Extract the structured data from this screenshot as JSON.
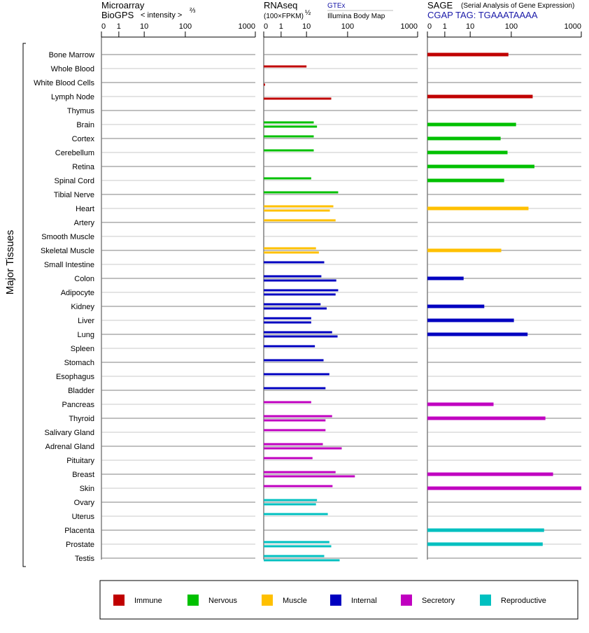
{
  "chart_data": {
    "type": "bar",
    "orientation": "horizontal",
    "ylabel": "Major Tissues",
    "axis_ticks": [
      0,
      1,
      10,
      100,
      1000
    ],
    "xlim": [
      0,
      1000
    ],
    "grid": true,
    "legend_placement": "bottom",
    "panels": {
      "microarray": {
        "title": "Microarray",
        "subtitle": "BioGPS",
        "unit_label": "< intensity >",
        "unit_exponent": "⅔",
        "series": []
      },
      "rnaseq": {
        "title": "RNAseq",
        "unit_label": "(100×FPKM)",
        "unit_exponent": "½",
        "series": [
          {
            "name": "GTEx",
            "values": [
              null,
              10,
              null,
              null,
              null,
              15,
              15,
              15,
              null,
              13,
              59,
              45,
              51,
              null,
              17,
              27,
              23,
              59,
              22,
              13,
              42,
              16,
              26,
              36,
              29,
              13,
              42,
              29,
              25,
              14,
              51,
              43,
              18,
              33,
              null,
              36,
              27
            ]
          },
          {
            "name": "Illumina Body Map",
            "values": [
              null,
              null,
              0.08,
              40,
              null,
              18,
              null,
              null,
              null,
              null,
              null,
              37,
              null,
              null,
              20,
              null,
              53,
              51,
              31,
              13,
              57,
              null,
              null,
              null,
              null,
              null,
              29,
              null,
              72,
              null,
              127,
              null,
              17,
              null,
              null,
              40,
              64
            ]
          }
        ]
      },
      "sage": {
        "title": "SAGE",
        "subtitle": "(Serial Analysis of Gene Expression)",
        "tag_label": "CGAP TAG: TGAAATAAAA",
        "series": [
          {
            "name": "SAGE",
            "values": [
              85,
              null,
              null,
              202,
              null,
              117,
              55,
              81,
              214,
              67,
              null,
              176,
              null,
              null,
              57,
              null,
              5.5,
              null,
              22,
              109,
              171,
              null,
              null,
              null,
              null,
              37,
              307,
              null,
              null,
              null,
              395,
              1000,
              null,
              null,
              294,
              281,
              null
            ]
          }
        ]
      }
    },
    "categories": [
      "Bone Marrow",
      "Whole Blood",
      "White Blood Cells",
      "Lymph Node",
      "Thymus",
      "Brain",
      "Cortex",
      "Cerebellum",
      "Retina",
      "Spinal Cord",
      "Tibial Nerve",
      "Heart",
      "Artery",
      "Smooth Muscle",
      "Skeletal Muscle",
      "Small Intestine",
      "Colon",
      "Adipocyte",
      "Kidney",
      "Liver",
      "Lung",
      "Spleen",
      "Stomach",
      "Esophagus",
      "Bladder",
      "Pancreas",
      "Thyroid",
      "Salivary Gland",
      "Adrenal Gland",
      "Pituitary",
      "Breast",
      "Skin",
      "Ovary",
      "Uterus",
      "Placenta",
      "Prostate",
      "Testis"
    ],
    "category_groups": [
      0,
      0,
      0,
      0,
      0,
      1,
      1,
      1,
      1,
      1,
      1,
      2,
      2,
      2,
      2,
      3,
      3,
      3,
      3,
      3,
      3,
      3,
      3,
      3,
      3,
      4,
      4,
      4,
      4,
      4,
      4,
      4,
      5,
      5,
      5,
      5,
      5
    ],
    "legend": [
      {
        "label": "Immune",
        "color": "#c00000"
      },
      {
        "label": "Nervous",
        "color": "#00c000"
      },
      {
        "label": "Muscle",
        "color": "#ffc000"
      },
      {
        "label": "Internal",
        "color": "#0000c0"
      },
      {
        "label": "Secretory",
        "color": "#c000c0"
      },
      {
        "label": "Reproductive",
        "color": "#00c0c0"
      }
    ]
  }
}
